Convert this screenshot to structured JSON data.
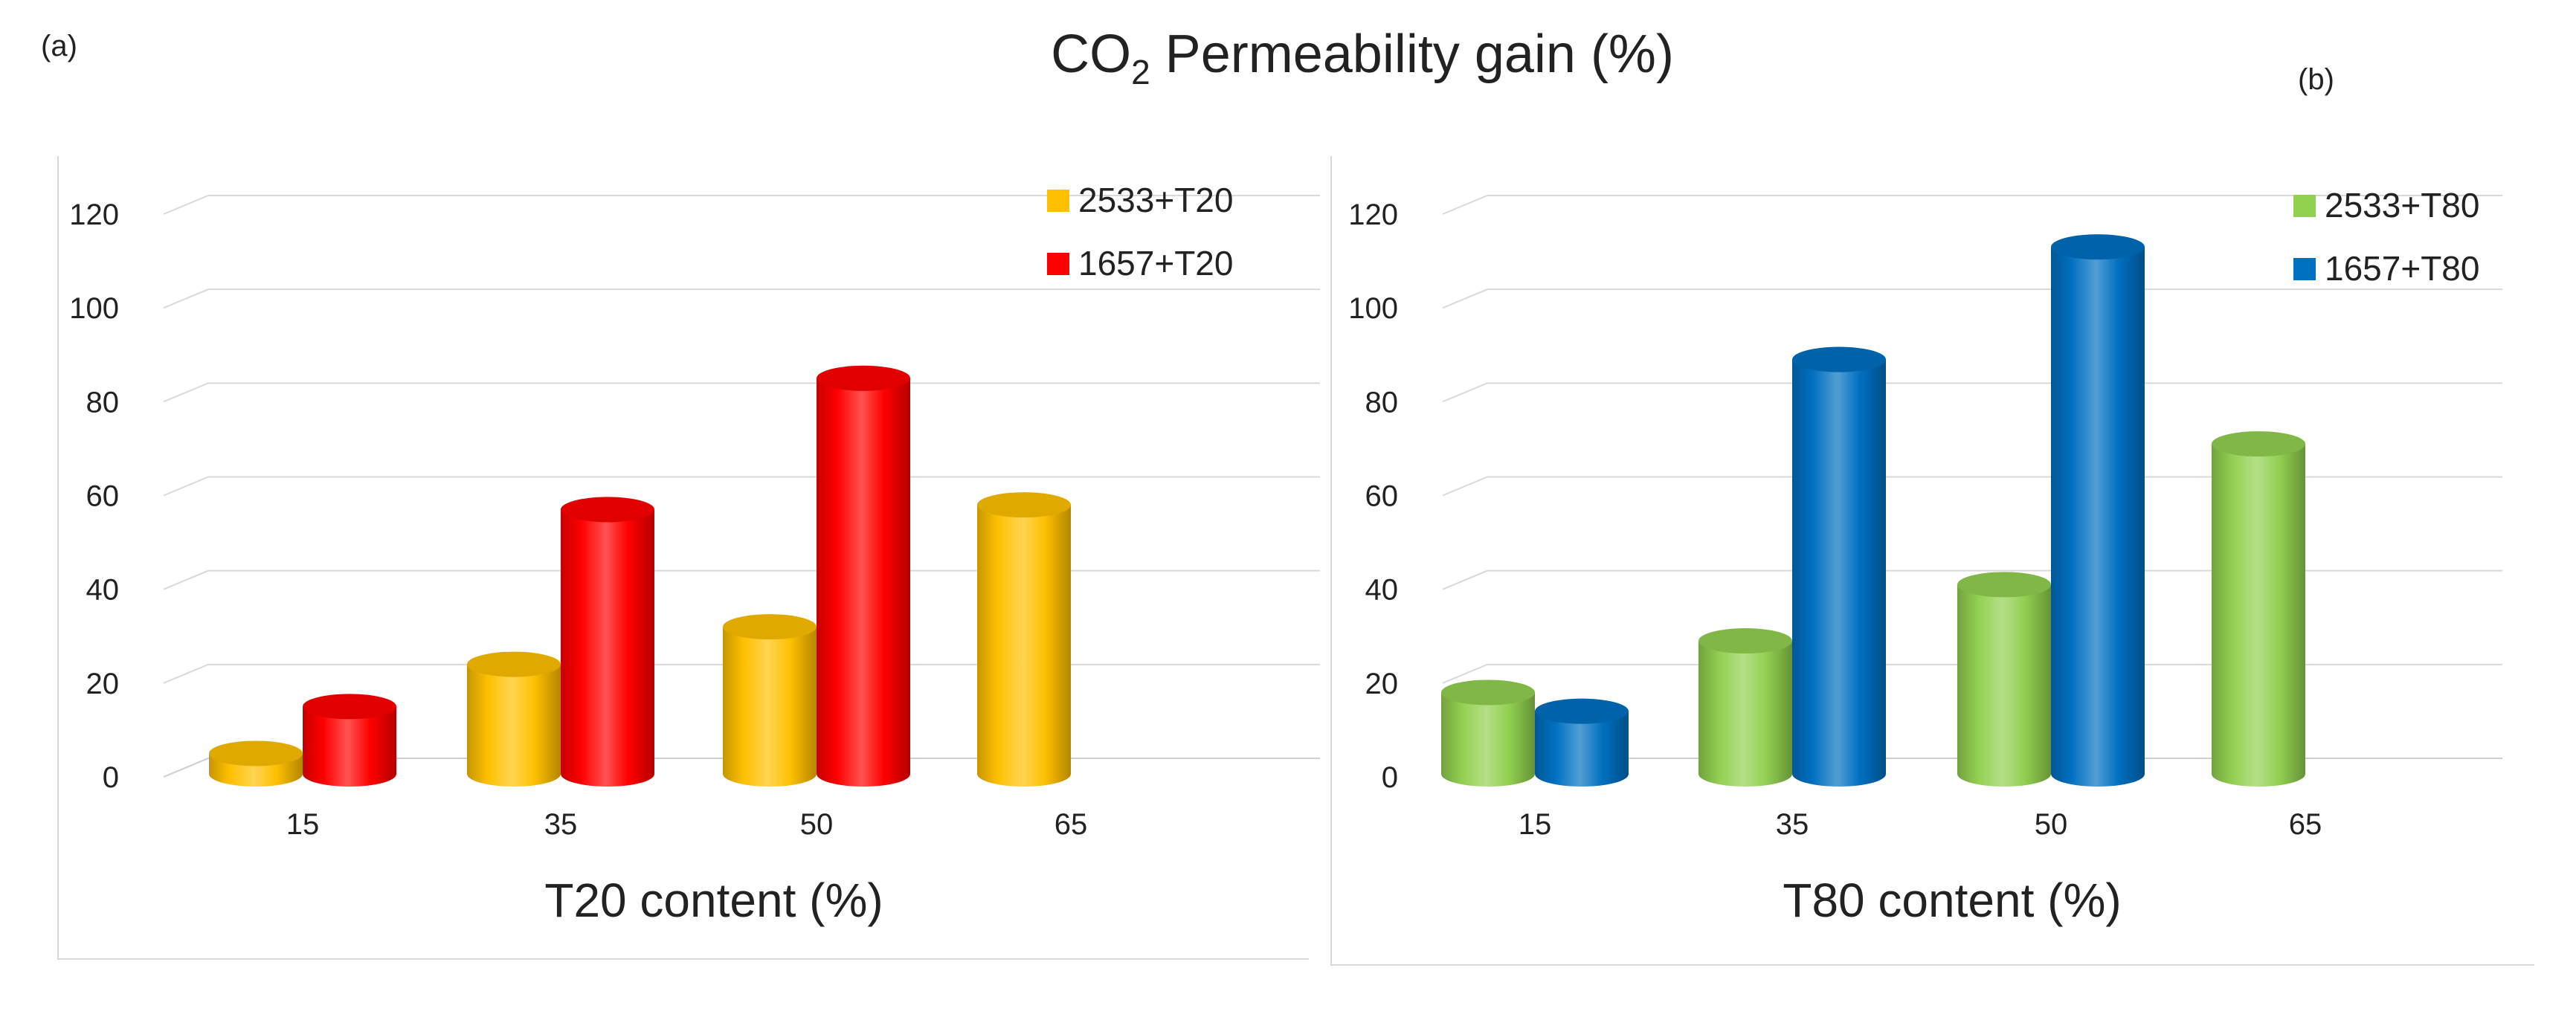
{
  "figure": {
    "title_main": "CO",
    "title_sub": "2",
    "title_rest": " Permeability gain (%)",
    "panel_a_label": "(a)",
    "panel_b_label": "(b)"
  },
  "chart_data": [
    {
      "type": "bar",
      "panel": "(a)",
      "title": "CO2 Permeability gain (%)",
      "xlabel": "T20 content (%)",
      "ylabel": "",
      "ylim": [
        0,
        120
      ],
      "yticks": [
        "0",
        "20",
        "40",
        "60",
        "80",
        "100",
        "120"
      ],
      "categories": [
        "15",
        "35",
        "50",
        "65"
      ],
      "legend_position": "top-right",
      "grid": true,
      "series": [
        {
          "name": "2533+T20",
          "color": "#FFC000",
          "values": [
            5,
            24,
            32,
            58
          ]
        },
        {
          "name": "1657+T20",
          "color": "#FF0000",
          "values": [
            15,
            57,
            85,
            null
          ]
        }
      ]
    },
    {
      "type": "bar",
      "panel": "(b)",
      "title": "CO2 Permeability gain (%)",
      "xlabel": "T80 content (%)",
      "ylabel": "",
      "ylim": [
        0,
        120
      ],
      "yticks": [
        "0",
        "20",
        "40",
        "60",
        "80",
        "100",
        "120"
      ],
      "categories": [
        "15",
        "35",
        "50",
        "65"
      ],
      "legend_position": "top-right",
      "grid": true,
      "series": [
        {
          "name": "2533+T80",
          "color": "#92D050",
          "values": [
            18,
            29,
            41,
            71
          ]
        },
        {
          "name": "1657+T80",
          "color": "#0070C0",
          "values": [
            14,
            89,
            113,
            null
          ]
        }
      ]
    }
  ]
}
